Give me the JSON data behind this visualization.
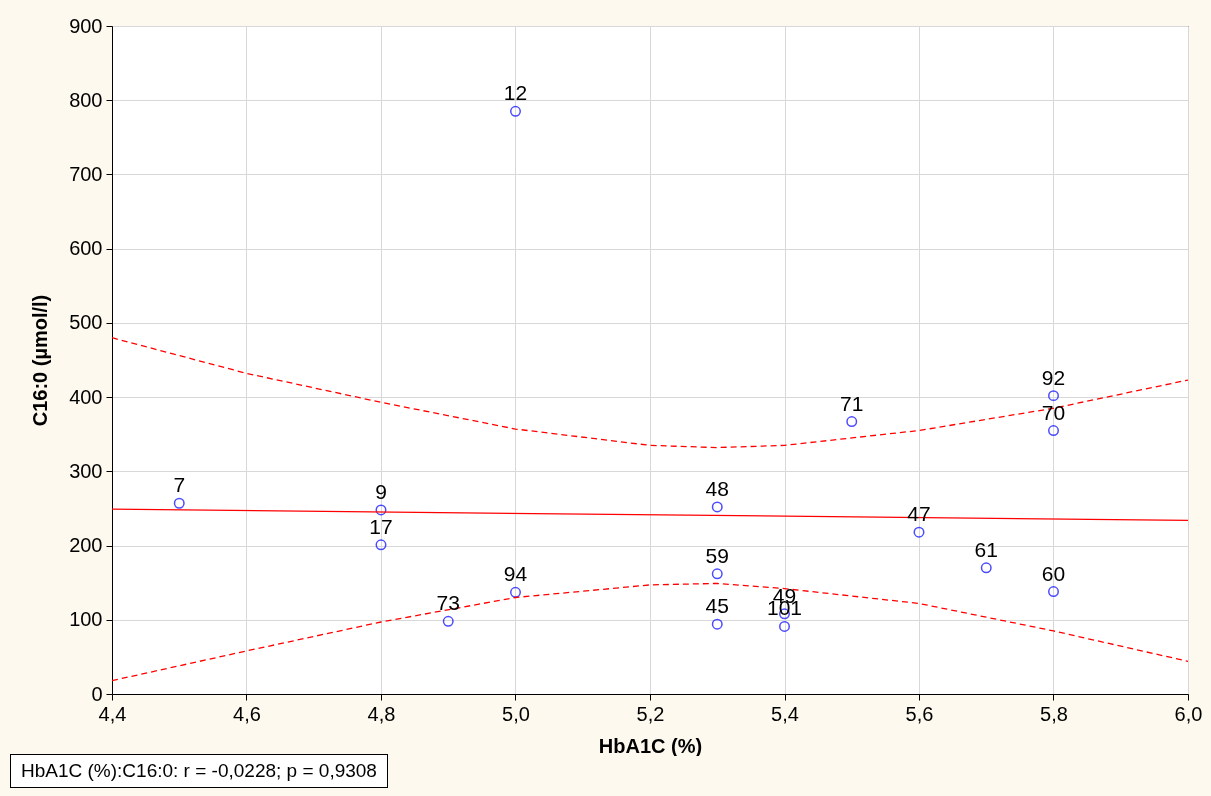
{
  "chart_data": {
    "type": "scatter",
    "xlabel": "HbA1C (%)",
    "ylabel": "C16:0 (µmol/l)",
    "xlim": [
      4.4,
      6.0
    ],
    "xticks": [
      {
        "value": 4.4,
        "label": "4,4"
      },
      {
        "value": 4.6,
        "label": "4,6"
      },
      {
        "value": 4.8,
        "label": "4,8"
      },
      {
        "value": 5.0,
        "label": "5,0"
      },
      {
        "value": 5.2,
        "label": "5,2"
      },
      {
        "value": 5.4,
        "label": "5,4"
      },
      {
        "value": 5.6,
        "label": "5,6"
      },
      {
        "value": 5.8,
        "label": "5,8"
      },
      {
        "value": 6.0,
        "label": "6,0"
      }
    ],
    "ylim": [
      0,
      900
    ],
    "yticks": [
      0,
      100,
      200,
      300,
      400,
      500,
      600,
      700,
      800,
      900
    ],
    "grid": true,
    "series": [
      {
        "color": "#0000ff",
        "marker": "circle",
        "x": [
          4.5,
          4.8,
          4.8,
          4.9,
          5.0,
          5.0,
          5.3,
          5.3,
          5.3,
          5.4,
          5.4,
          5.5,
          5.6,
          5.7,
          5.8,
          5.8,
          5.8
        ],
        "values": [
          257,
          248,
          201,
          98,
          137,
          785,
          252,
          162,
          94,
          108,
          91,
          367,
          218,
          170,
          138,
          402,
          355
        ]
      },
      {
        "type": "line",
        "color": "#ff0000",
        "line_style": "solid",
        "x": [
          4.4,
          6.0
        ],
        "values": [
          249,
          234
        ]
      },
      {
        "type": "line",
        "color": "#ff0000",
        "line_style": "dashed",
        "x": [
          4.4,
          4.6,
          4.8,
          5.0,
          5.2,
          5.3,
          5.4,
          5.6,
          5.8,
          6.0
        ],
        "values": [
          480,
          432,
          393,
          357,
          335,
          332,
          335,
          355,
          385,
          423
        ]
      },
      {
        "type": "line",
        "color": "#ff0000",
        "line_style": "dashed",
        "x": [
          4.4,
          4.6,
          4.8,
          5.0,
          5.2,
          5.3,
          5.4,
          5.6,
          5.8,
          6.0
        ],
        "values": [
          18,
          58,
          97,
          130,
          147,
          149,
          142,
          122,
          85,
          44
        ]
      }
    ],
    "annotations": [
      {
        "text": "7",
        "x": 4.5,
        "y": 257
      },
      {
        "text": "9",
        "x": 4.8,
        "y": 248
      },
      {
        "text": "17",
        "x": 4.8,
        "y": 201
      },
      {
        "text": "73",
        "x": 4.9,
        "y": 98
      },
      {
        "text": "94",
        "x": 5.0,
        "y": 137
      },
      {
        "text": "12",
        "x": 5.0,
        "y": 785
      },
      {
        "text": "48",
        "x": 5.3,
        "y": 252
      },
      {
        "text": "59",
        "x": 5.3,
        "y": 162
      },
      {
        "text": "45",
        "x": 5.3,
        "y": 94
      },
      {
        "text": "49",
        "x": 5.4,
        "y": 108
      },
      {
        "text": "101",
        "x": 5.4,
        "y": 91
      },
      {
        "text": "71",
        "x": 5.5,
        "y": 367
      },
      {
        "text": "47",
        "x": 5.6,
        "y": 218
      },
      {
        "text": "61",
        "x": 5.7,
        "y": 170
      },
      {
        "text": "60",
        "x": 5.8,
        "y": 138
      },
      {
        "text": "92",
        "x": 5.8,
        "y": 402
      },
      {
        "text": "70",
        "x": 5.8,
        "y": 355
      },
      "HbA1C (%):C16:0: r = -0,0228; p = 0,9308"
    ]
  }
}
